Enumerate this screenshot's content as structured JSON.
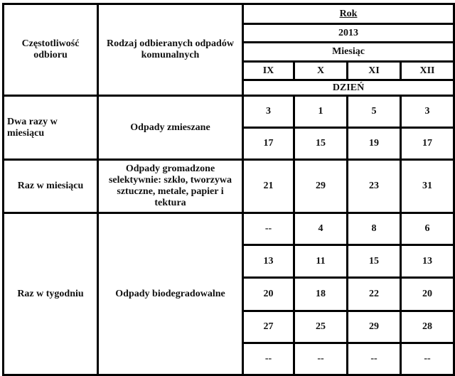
{
  "header": {
    "frequency": "Częstotliwość odbioru",
    "waste_type": "Rodzaj odbieranych odpadów komunalnych",
    "year_label": "Rok",
    "year": "2013",
    "month_label": "Miesiąc",
    "months": [
      "IX",
      "X",
      "XI",
      "XII"
    ],
    "day_label": "DZIEŃ"
  },
  "rows": [
    {
      "frequency": "Dwa razy w miesiącu",
      "waste": "Odpady zmieszane",
      "days": [
        [
          "3",
          "1",
          "5",
          "3"
        ],
        [
          "17",
          "15",
          "19",
          "17"
        ]
      ]
    },
    {
      "frequency": "Raz w miesiącu",
      "waste": "Odpady gromadzone selektywnie: szkło, tworzywa sztuczne, metale, papier i tektura",
      "days": [
        [
          "21",
          "29",
          "23",
          "31"
        ]
      ]
    },
    {
      "frequency": "Raz w tygodniu",
      "waste": "Odpady biodegradowalne",
      "days": [
        [
          "--",
          "4",
          "8",
          "6"
        ],
        [
          "13",
          "11",
          "15",
          "13"
        ],
        [
          "20",
          "18",
          "22",
          "20"
        ],
        [
          "27",
          "25",
          "29",
          "28"
        ],
        [
          "--",
          "--",
          "--",
          "--"
        ]
      ]
    }
  ]
}
